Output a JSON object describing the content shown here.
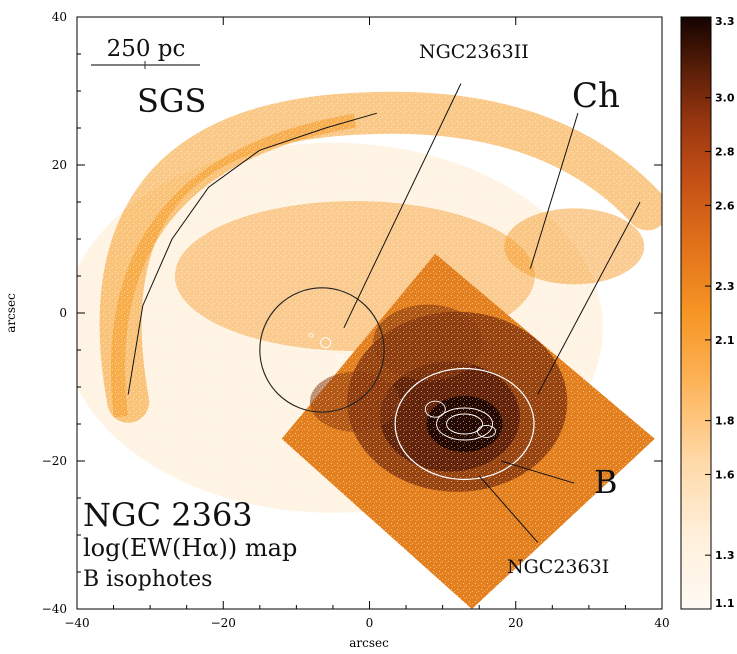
{
  "chart_data": {
    "type": "heatmap",
    "xlabel": "arcsec",
    "ylabel": "arcsec",
    "xlim": [
      -40,
      40
    ],
    "ylim": [
      -40,
      40
    ],
    "x_ticks": [
      -40,
      -20,
      0,
      20,
      40
    ],
    "y_ticks": [
      -40,
      -20,
      0,
      20,
      40
    ],
    "x_tick_labels": [
      "−40",
      "−20",
      "0",
      "20",
      "40"
    ],
    "y_tick_labels": [
      "−40",
      "−20",
      "0",
      "20",
      "40"
    ],
    "scale_bar_label": "250 pc",
    "annotations": {
      "sgs": "SGS",
      "ngc2363ii": "NGC2363II",
      "ch": "Ch",
      "b": "B",
      "ngc2363i": "NGC2363I"
    },
    "info_text": [
      "NGC 2363",
      "log(EW(Hα)) map",
      "B isophotes"
    ],
    "colorbar": {
      "min": 1.1,
      "max": 3.3,
      "tick_values": [
        3.3,
        3.0,
        2.8,
        2.6,
        2.3,
        2.1,
        1.8,
        1.6,
        1.3,
        1.1
      ],
      "tick_labels": [
        "3.3",
        "3.0",
        "2.8",
        "2.6",
        "2.3",
        "2.1",
        "1.8",
        "1.6",
        "1.3",
        "1.1"
      ]
    },
    "regions": [
      {
        "name": "NGC2363II",
        "center": [
          -6.5,
          -5
        ],
        "radius": 8.5
      },
      {
        "name": "NGC2363I",
        "center": [
          13,
          -15
        ],
        "semi_axes": [
          9.5,
          7.5
        ]
      }
    ],
    "colors": {
      "low": "#fff2e0",
      "mid": "#f59a25",
      "high": "#8a3a0f",
      "peak": "#1a0500"
    }
  }
}
